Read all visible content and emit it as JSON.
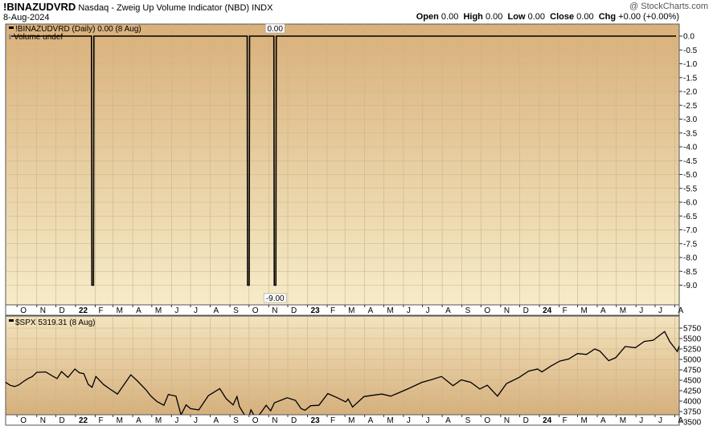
{
  "header": {
    "symbol": "!BINAZUDVRD",
    "description": "Nasdaq - Zweig Up Volume Indicator (NBD)",
    "exchange": "INDX",
    "date": "8-Aug-2024",
    "brand": "@ StockCharts.com"
  },
  "ohlc": {
    "open_label": "Open",
    "open": "0.00",
    "high_label": "High",
    "high": "0.00",
    "low_label": "Low",
    "low": "0.00",
    "close_label": "Close",
    "close": "0.00",
    "chg_label": "Chg",
    "chg": "+0.00 (+0.00%)"
  },
  "colors": {
    "panel_top": "#d9b07a",
    "panel_bottom": "#f6ecc8",
    "line": "#000000",
    "grid": "#c9b48c"
  },
  "chart_data": [
    {
      "type": "line",
      "legend": "!BINAZUDVRD (Daily) 0.00 (8 Aug)",
      "legend2": "Volume undef",
      "ylim": [
        -9.5,
        0.2
      ],
      "yticks": [
        "0.0",
        "-0.5",
        "-1.0",
        "-1.5",
        "-2.0",
        "-2.5",
        "-3.0",
        "-3.5",
        "-4.0",
        "-4.5",
        "-5.0",
        "-5.5",
        "-6.0",
        "-6.5",
        "-7.0",
        "-7.5",
        "-8.0",
        "-8.5",
        "-9.0"
      ],
      "annotations": [
        "0.00",
        "-9.00"
      ],
      "baseline_value": 0.0,
      "spikes": [
        {
          "date": "2022-01-28",
          "value": -9.0
        },
        {
          "date": "2022-09-30",
          "value": -9.0
        },
        {
          "date": "2022-11-11",
          "value": -9.0
        }
      ],
      "x_start": "2021-09-13",
      "x_end": "2024-08-08",
      "month_labels": [
        "O",
        "N",
        "D",
        "22",
        "F",
        "M",
        "A",
        "M",
        "J",
        "J",
        "A",
        "S",
        "O",
        "N",
        "D",
        "23",
        "F",
        "M",
        "A",
        "M",
        "J",
        "J",
        "A",
        "S",
        "O",
        "N",
        "D",
        "24",
        "F",
        "M",
        "A",
        "M",
        "J",
        "J",
        "A"
      ]
    },
    {
      "type": "line",
      "legend": "$SPX 5319.31 (8 Aug)",
      "ylim": [
        3450,
        5800
      ],
      "yticks": [
        "5750",
        "5500",
        "5250",
        "5000",
        "4750",
        "4500",
        "4250",
        "4000",
        "3750",
        "3500"
      ],
      "series": [
        {
          "name": "$SPX",
          "points": [
            [
              "2021-09-13",
              4450
            ],
            [
              "2021-09-20",
              4380
            ],
            [
              "2021-09-27",
              4350
            ],
            [
              "2021-10-04",
              4390
            ],
            [
              "2021-10-11",
              4470
            ],
            [
              "2021-10-18",
              4540
            ],
            [
              "2021-10-25",
              4590
            ],
            [
              "2021-11-01",
              4690
            ],
            [
              "2021-11-15",
              4700
            ],
            [
              "2021-11-26",
              4600
            ],
            [
              "2021-12-03",
              4540
            ],
            [
              "2021-12-10",
              4710
            ],
            [
              "2021-12-20",
              4570
            ],
            [
              "2021-12-31",
              4770
            ],
            [
              "2022-01-07",
              4680
            ],
            [
              "2022-01-14",
              4660
            ],
            [
              "2022-01-21",
              4400
            ],
            [
              "2022-01-27",
              4330
            ],
            [
              "2022-02-02",
              4590
            ],
            [
              "2022-02-14",
              4400
            ],
            [
              "2022-02-24",
              4290
            ],
            [
              "2022-03-08",
              4170
            ],
            [
              "2022-03-29",
              4630
            ],
            [
              "2022-04-08",
              4490
            ],
            [
              "2022-04-22",
              4270
            ],
            [
              "2022-04-29",
              4130
            ],
            [
              "2022-05-09",
              3990
            ],
            [
              "2022-05-20",
              3900
            ],
            [
              "2022-05-27",
              4160
            ],
            [
              "2022-06-08",
              4120
            ],
            [
              "2022-06-16",
              3670
            ],
            [
              "2022-06-24",
              3910
            ],
            [
              "2022-07-01",
              3820
            ],
            [
              "2022-07-14",
              3790
            ],
            [
              "2022-07-29",
              4130
            ],
            [
              "2022-08-16",
              4300
            ],
            [
              "2022-08-26",
              4060
            ],
            [
              "2022-09-06",
              3910
            ],
            [
              "2022-09-12",
              4110
            ],
            [
              "2022-09-16",
              3870
            ],
            [
              "2022-09-23",
              3690
            ],
            [
              "2022-09-30",
              3590
            ],
            [
              "2022-10-04",
              3790
            ],
            [
              "2022-10-12",
              3580
            ],
            [
              "2022-10-21",
              3750
            ],
            [
              "2022-10-28",
              3900
            ],
            [
              "2022-11-04",
              3770
            ],
            [
              "2022-11-10",
              3960
            ],
            [
              "2022-11-30",
              4080
            ],
            [
              "2022-12-13",
              4020
            ],
            [
              "2022-12-22",
              3820
            ],
            [
              "2022-12-28",
              3780
            ],
            [
              "2023-01-06",
              3890
            ],
            [
              "2023-01-19",
              3900
            ],
            [
              "2023-02-02",
              4180
            ],
            [
              "2023-02-17",
              4080
            ],
            [
              "2023-03-02",
              3980
            ],
            [
              "2023-03-06",
              4050
            ],
            [
              "2023-03-13",
              3860
            ],
            [
              "2023-03-31",
              4110
            ],
            [
              "2023-04-14",
              4140
            ],
            [
              "2023-04-28",
              4170
            ],
            [
              "2023-05-12",
              4120
            ],
            [
              "2023-05-26",
              4210
            ],
            [
              "2023-06-09",
              4300
            ],
            [
              "2023-06-30",
              4450
            ],
            [
              "2023-07-14",
              4510
            ],
            [
              "2023-07-31",
              4590
            ],
            [
              "2023-08-18",
              4370
            ],
            [
              "2023-08-31",
              4510
            ],
            [
              "2023-09-15",
              4450
            ],
            [
              "2023-09-29",
              4290
            ],
            [
              "2023-10-11",
              4380
            ],
            [
              "2023-10-27",
              4120
            ],
            [
              "2023-11-10",
              4420
            ],
            [
              "2023-11-30",
              4570
            ],
            [
              "2023-12-15",
              4720
            ],
            [
              "2023-12-29",
              4770
            ],
            [
              "2024-01-05",
              4700
            ],
            [
              "2024-01-19",
              4840
            ],
            [
              "2024-02-02",
              4960
            ],
            [
              "2024-02-16",
              5010
            ],
            [
              "2024-03-01",
              5140
            ],
            [
              "2024-03-15",
              5120
            ],
            [
              "2024-03-28",
              5250
            ],
            [
              "2024-04-05",
              5200
            ],
            [
              "2024-04-19",
              4970
            ],
            [
              "2024-04-30",
              5040
            ],
            [
              "2024-05-15",
              5310
            ],
            [
              "2024-05-31",
              5280
            ],
            [
              "2024-06-14",
              5430
            ],
            [
              "2024-06-28",
              5460
            ],
            [
              "2024-07-16",
              5670
            ],
            [
              "2024-07-24",
              5430
            ],
            [
              "2024-08-05",
              5190
            ],
            [
              "2024-08-08",
              5320
            ]
          ]
        }
      ],
      "month_labels": [
        "O",
        "N",
        "D",
        "22",
        "F",
        "M",
        "A",
        "M",
        "J",
        "J",
        "A",
        "S",
        "O",
        "N",
        "D",
        "23",
        "F",
        "M",
        "A",
        "M",
        "J",
        "J",
        "A",
        "S",
        "O",
        "N",
        "D",
        "24",
        "F",
        "M",
        "A",
        "M",
        "J",
        "J",
        "A"
      ]
    }
  ]
}
